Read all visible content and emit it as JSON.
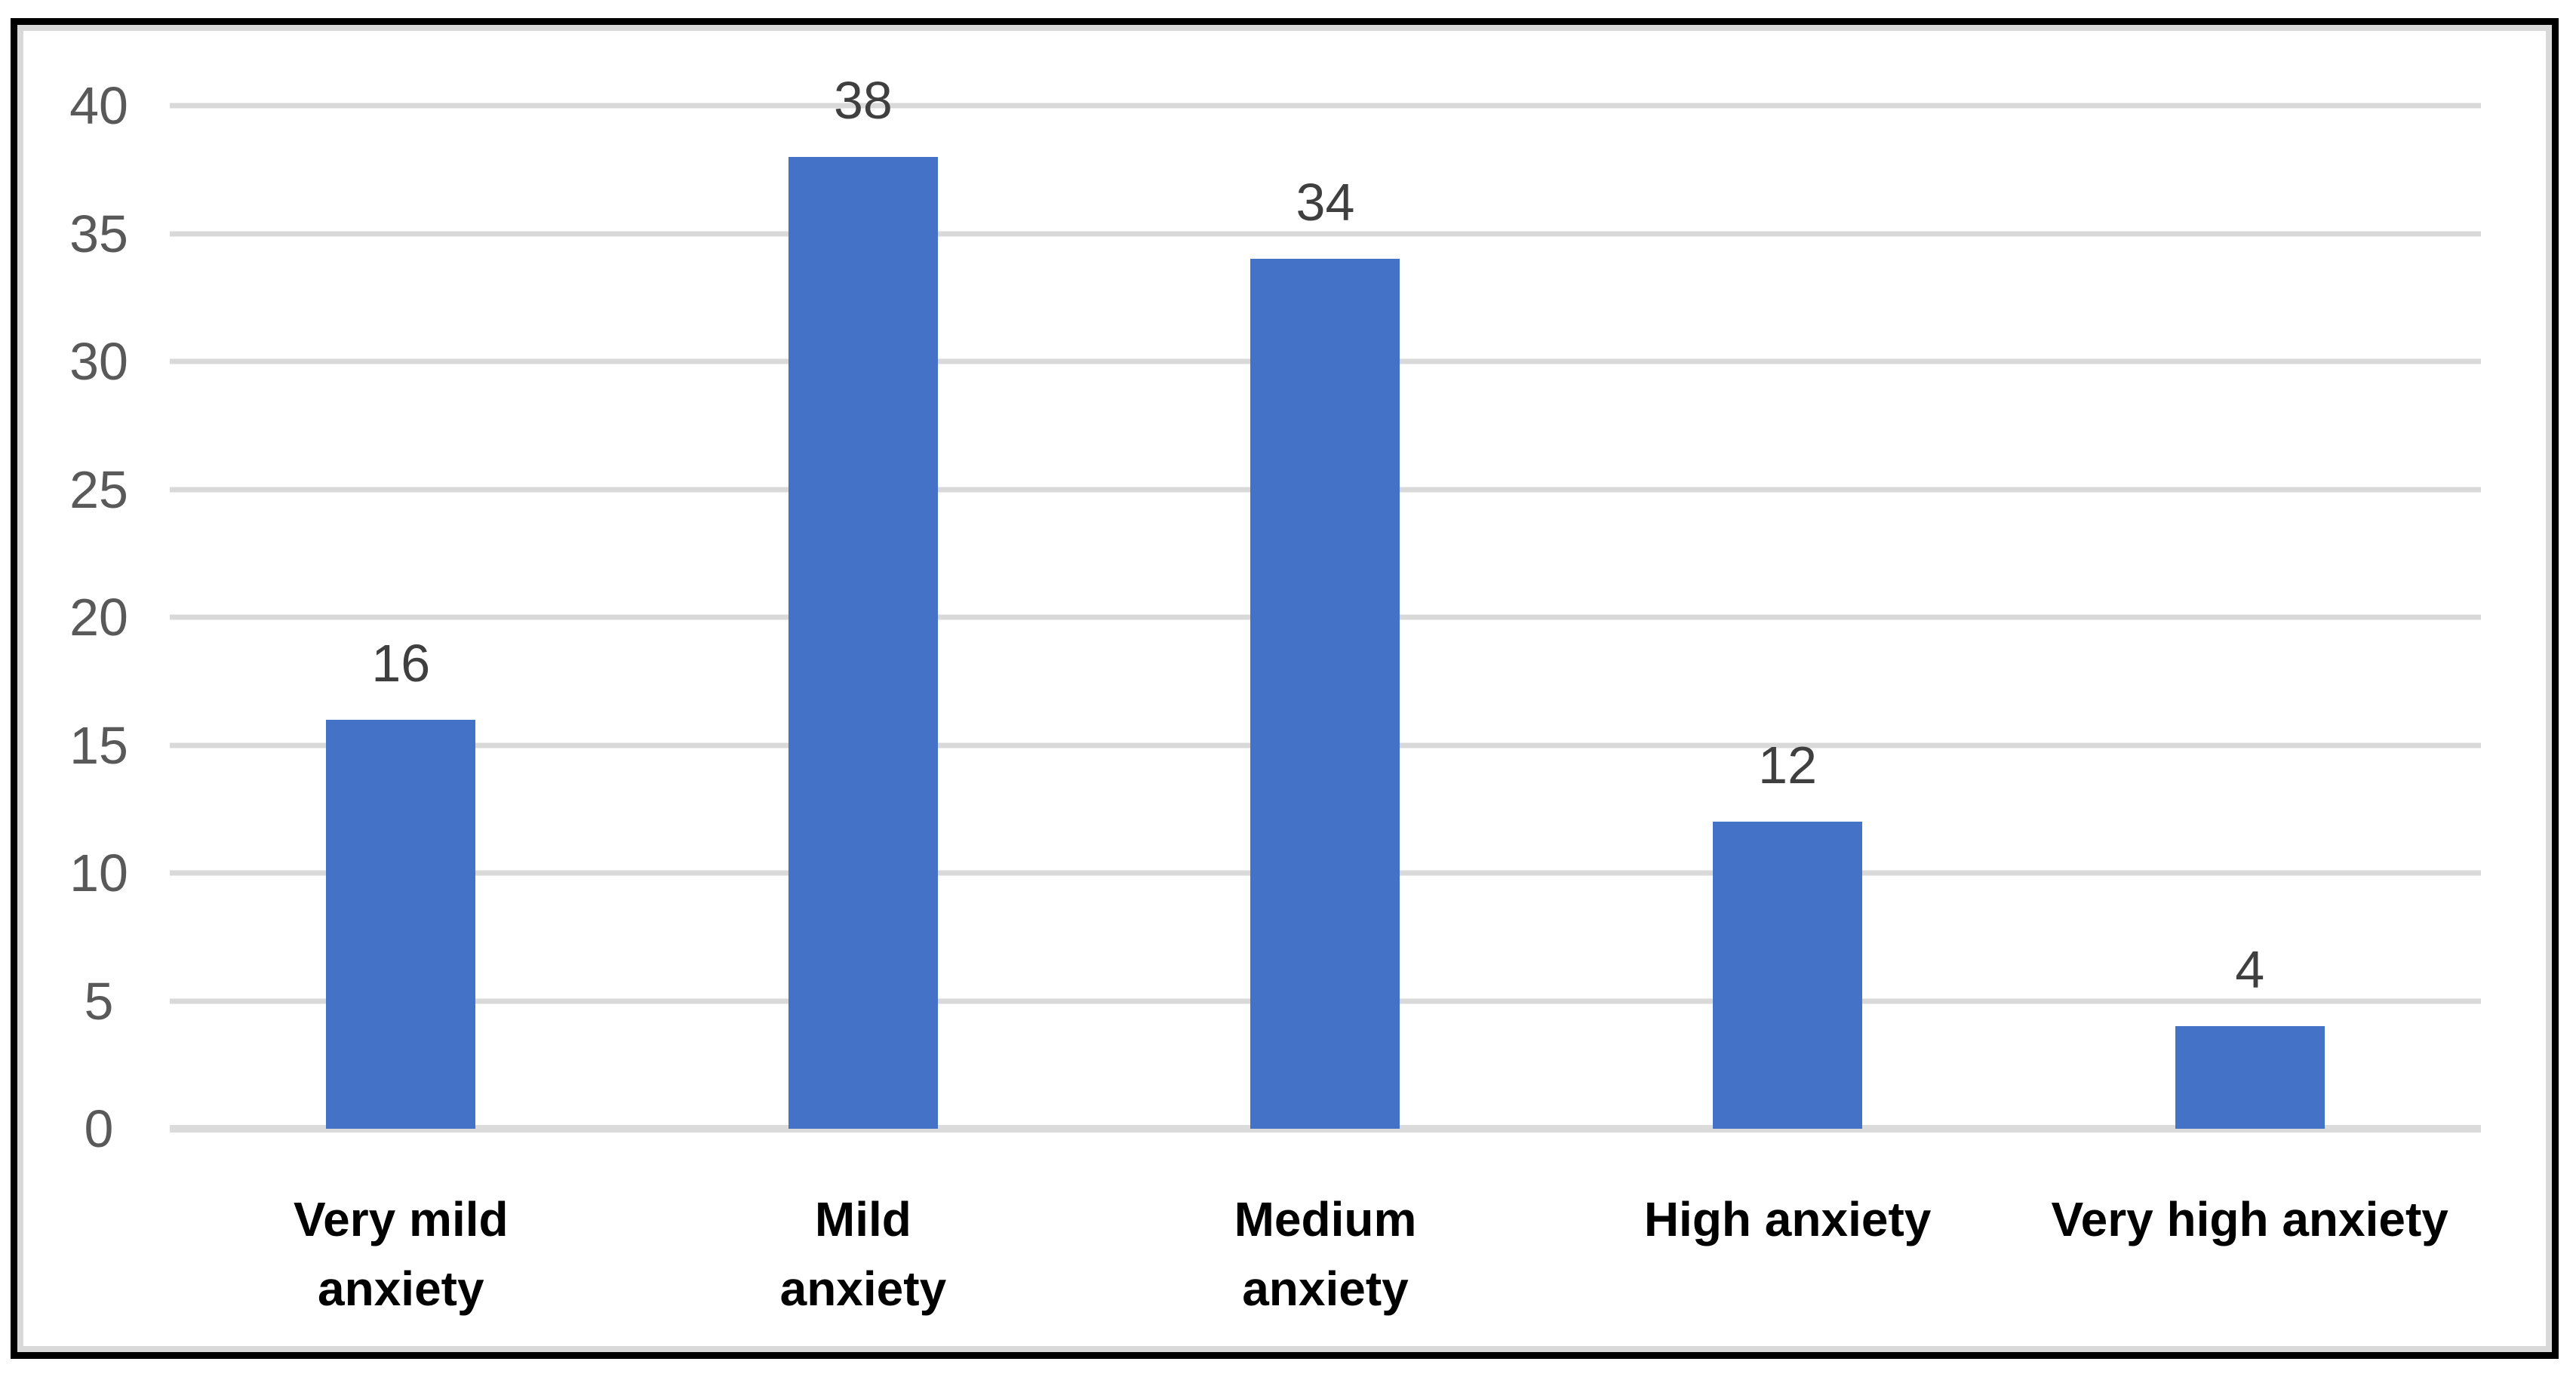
{
  "chart_data": {
    "type": "bar",
    "title": "",
    "xlabel": "",
    "ylabel": "",
    "categories": [
      "Very mild anxiety",
      "Mild anxiety",
      "Medium anxiety",
      "High anxiety",
      "Very high anxiety"
    ],
    "category_label_lines": [
      [
        "Very mild",
        "anxiety"
      ],
      [
        "Mild",
        "anxiety"
      ],
      [
        "Medium",
        "anxiety"
      ],
      [
        "High anxiety"
      ],
      [
        "Very high anxiety"
      ]
    ],
    "values": [
      16,
      38,
      34,
      12,
      4
    ],
    "data_labels": [
      "16",
      "38",
      "34",
      "12",
      "4"
    ],
    "ylim": [
      0,
      40
    ],
    "yticks": [
      0,
      5,
      10,
      15,
      20,
      25,
      30,
      35,
      40
    ],
    "grid": true,
    "legend": false,
    "colors": {
      "bar": "#4472C6",
      "gridline": "#D9D9D9",
      "baseline": "#DBDBDB",
      "axis_tick_label": "#595959",
      "data_label": "#3F3F3F",
      "category_label": "#000000",
      "outer_border": "#000000",
      "inner_frame": "#D9D9D9",
      "background": "#FFFFFF"
    }
  }
}
